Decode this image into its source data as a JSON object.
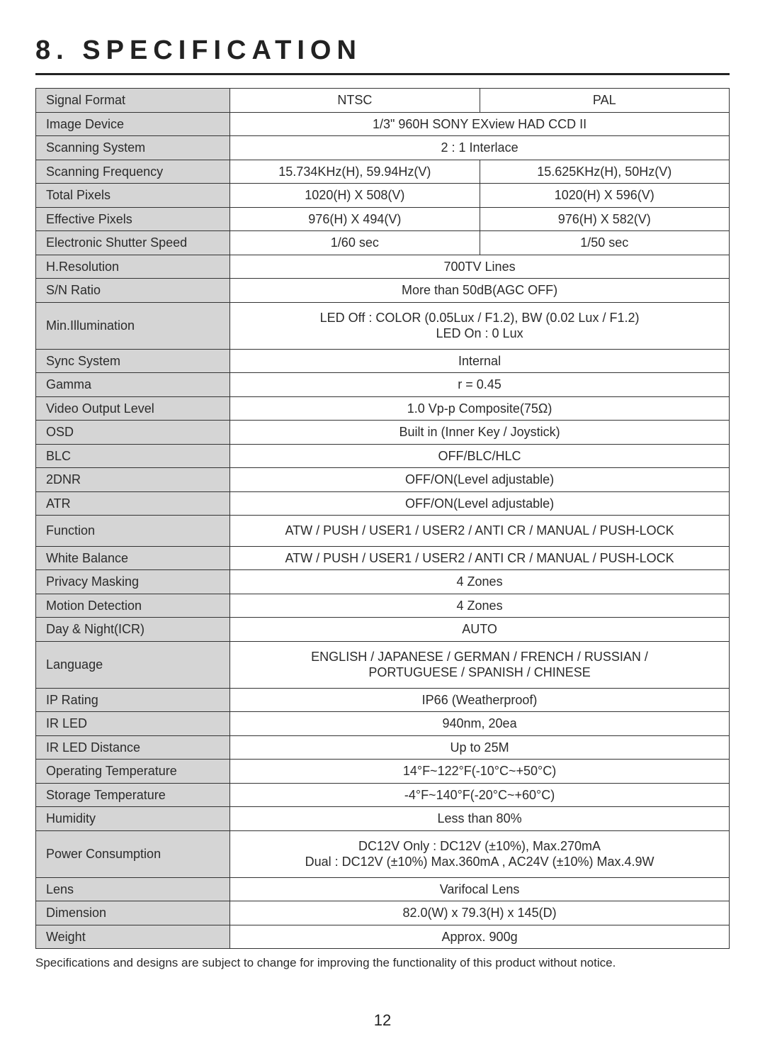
{
  "title": "8. SPECIFICATION",
  "rows": [
    {
      "label": "Signal Format",
      "type": "split",
      "left": "NTSC",
      "right": "PAL"
    },
    {
      "label": "Image Device",
      "type": "merged",
      "value": "1/3\" 960H SONY EXview HAD CCD II"
    },
    {
      "label": "Scanning System",
      "type": "merged",
      "value": "2 : 1 Interlace"
    },
    {
      "label": "Scanning Frequency",
      "type": "split",
      "left": "15.734KHz(H), 59.94Hz(V)",
      "right": "15.625KHz(H), 50Hz(V)"
    },
    {
      "label": "Total Pixels",
      "type": "split",
      "left": "1020(H) X 508(V)",
      "right": "1020(H) X 596(V)"
    },
    {
      "label": "Effective Pixels",
      "type": "split",
      "left": "976(H) X 494(V)",
      "right": "976(H) X 582(V)"
    },
    {
      "label": "Electronic Shutter Speed",
      "type": "split",
      "left": "1/60 sec",
      "right": "1/50 sec"
    },
    {
      "label": "H.Resolution",
      "type": "merged",
      "value": "700TV Lines"
    },
    {
      "label": "S/N Ratio",
      "type": "merged",
      "value": "More than 50dB(AGC OFF)"
    },
    {
      "label": "Min.Illumination",
      "type": "merged",
      "tall": true,
      "value": "LED Off : COLOR (0.05Lux / F1.2), BW (0.02 Lux / F1.2)\nLED On : 0 Lux"
    },
    {
      "label": "Sync System",
      "type": "merged",
      "value": "Internal"
    },
    {
      "label": "Gamma",
      "type": "merged",
      "value": "r = 0.45"
    },
    {
      "label": "Video Output Level",
      "type": "merged",
      "value": "1.0 Vp-p Composite(75Ω)"
    },
    {
      "label": "OSD",
      "type": "merged",
      "value": "Built in (Inner Key / Joystick)"
    },
    {
      "label": "BLC",
      "type": "merged",
      "value": "OFF/BLC/HLC"
    },
    {
      "label": "2DNR",
      "type": "merged",
      "value": "OFF/ON(Level adjustable)"
    },
    {
      "label": "ATR",
      "type": "merged",
      "value": "OFF/ON(Level adjustable)"
    },
    {
      "label": "Function",
      "type": "merged",
      "tall": true,
      "value": "ATW / PUSH / USER1 / USER2 / ANTI CR / MANUAL / PUSH-LOCK"
    },
    {
      "label": "White Balance",
      "type": "merged",
      "value": "ATW / PUSH / USER1 / USER2 / ANTI CR / MANUAL / PUSH-LOCK"
    },
    {
      "label": "Privacy Masking",
      "type": "merged",
      "value": "4 Zones"
    },
    {
      "label": "Motion Detection",
      "type": "merged",
      "value": "4 Zones"
    },
    {
      "label": "Day & Night(ICR)",
      "type": "merged",
      "value": "AUTO"
    },
    {
      "label": "Language",
      "type": "merged",
      "tall": true,
      "value": "ENGLISH / JAPANESE / GERMAN / FRENCH / RUSSIAN /\nPORTUGUESE / SPANISH / CHINESE"
    },
    {
      "label": "IP Rating",
      "type": "merged",
      "value": "IP66 (Weatherproof)"
    },
    {
      "label": "IR LED",
      "type": "merged",
      "value": "940nm,  20ea"
    },
    {
      "label": "IR LED Distance",
      "type": "merged",
      "value": "Up to 25M"
    },
    {
      "label": "Operating Temperature",
      "type": "merged",
      "value": "14°F~122°F(-10°C~+50°C)"
    },
    {
      "label": "Storage Temperature",
      "type": "merged",
      "value": "-4°F~140°F(-20°C~+60°C)"
    },
    {
      "label": "Humidity",
      "type": "merged",
      "value": "Less than 80%"
    },
    {
      "label": "Power Consumption",
      "type": "merged",
      "tall": true,
      "value": "DC12V Only : DC12V (±10%), Max.270mA\nDual :  DC12V (±10%) Max.360mA , AC24V (±10%) Max.4.9W"
    },
    {
      "label": "Lens",
      "type": "merged",
      "value": "Varifocal Lens"
    },
    {
      "label": "Dimension",
      "type": "merged",
      "value": "82.0(W) x 79.3(H) x 145(D)"
    },
    {
      "label": "Weight",
      "type": "merged",
      "value": "Approx. 900g"
    }
  ],
  "footnote": "Specifications and designs are subject to change for improving the functionality of this product without notice.",
  "page_number": "12",
  "colors": {
    "label_bg": "#d5d5d5",
    "border": "#333333",
    "text": "#2b2b2b",
    "rule": "#222222"
  },
  "label_col_width_pct": 28
}
